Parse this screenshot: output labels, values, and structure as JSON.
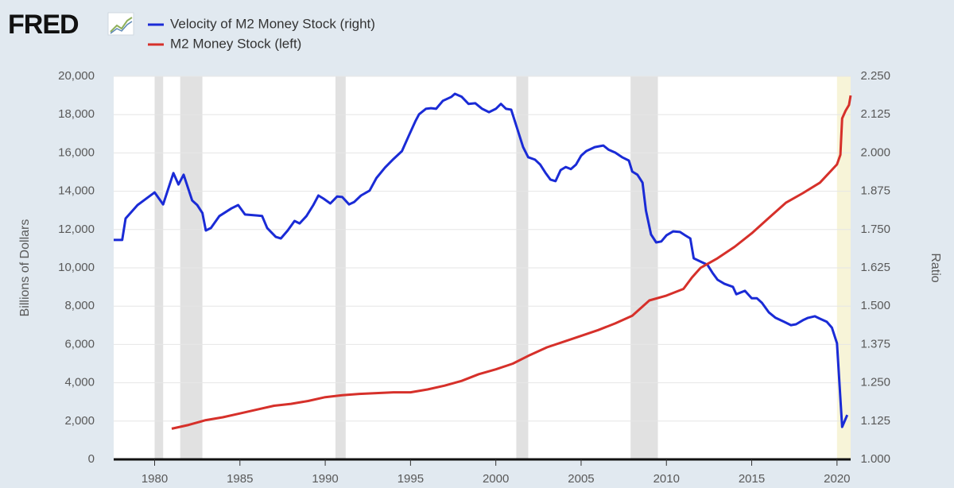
{
  "chart_data": {
    "type": "line",
    "logo": "FRED",
    "y_label": "Billions of Dollars",
    "y2_label": "Ratio",
    "xlim": [
      1977.6,
      2020.8
    ],
    "xticks": [
      1980,
      1985,
      1990,
      1995,
      2000,
      2005,
      2010,
      2015,
      2020
    ],
    "ylim": [
      0,
      20000
    ],
    "yticks": [
      {
        "value": 0,
        "label": "0"
      },
      {
        "value": 2000,
        "label": "2,000"
      },
      {
        "value": 4000,
        "label": "4,000"
      },
      {
        "value": 6000,
        "label": "6,000"
      },
      {
        "value": 8000,
        "label": "8,000"
      },
      {
        "value": 10000,
        "label": "10,000"
      },
      {
        "value": 12000,
        "label": "12,000"
      },
      {
        "value": 14000,
        "label": "14,000"
      },
      {
        "value": 16000,
        "label": "16,000"
      },
      {
        "value": 18000,
        "label": "18,000"
      },
      {
        "value": 20000,
        "label": "20,000"
      }
    ],
    "y2lim": [
      1.0,
      2.25
    ],
    "y2ticks": [
      {
        "value": 1.0,
        "label": "1.000"
      },
      {
        "value": 1.125,
        "label": "1.125"
      },
      {
        "value": 1.25,
        "label": "1.250"
      },
      {
        "value": 1.375,
        "label": "1.375"
      },
      {
        "value": 1.5,
        "label": "1.500"
      },
      {
        "value": 1.625,
        "label": "1.625"
      },
      {
        "value": 1.75,
        "label": "1.750"
      },
      {
        "value": 1.875,
        "label": "1.875"
      },
      {
        "value": 2.0,
        "label": "2.000"
      },
      {
        "value": 2.125,
        "label": "2.125"
      },
      {
        "value": 2.25,
        "label": "2.250"
      }
    ],
    "grid": true,
    "recessions": [
      {
        "start": 1980.0,
        "end": 1980.5,
        "color": "#e1e1e1"
      },
      {
        "start": 1981.5,
        "end": 1982.8,
        "color": "#e1e1e1"
      },
      {
        "start": 1990.6,
        "end": 1991.2,
        "color": "#e1e1e1"
      },
      {
        "start": 2001.2,
        "end": 2001.9,
        "color": "#e1e1e1"
      },
      {
        "start": 2007.9,
        "end": 2009.5,
        "color": "#e1e1e1"
      },
      {
        "start": 2020.0,
        "end": 2020.8,
        "color": "#f7f4d8"
      }
    ],
    "series": [
      {
        "name": "Velocity of M2 Money Stock (right)",
        "color": "#1a2bd6",
        "axis": "y2",
        "x": [
          1977.6,
          1978.1,
          1978.3,
          1979.0,
          1980.0,
          1980.5,
          1981.1,
          1981.4,
          1981.7,
          1982.2,
          1982.5,
          1982.8,
          1983.0,
          1983.3,
          1983.8,
          1984.5,
          1984.9,
          1985.3,
          1986.0,
          1986.3,
          1986.6,
          1987.1,
          1987.4,
          1987.8,
          1988.2,
          1988.5,
          1988.9,
          1989.3,
          1989.6,
          1989.9,
          1990.3,
          1990.7,
          1991.0,
          1991.4,
          1991.7,
          1992.1,
          1992.6,
          1993.0,
          1993.5,
          1994.0,
          1994.5,
          1994.9,
          1995.3,
          1995.5,
          1995.9,
          1996.2,
          1996.5,
          1996.9,
          1997.4,
          1997.6,
          1998.0,
          1998.4,
          1998.8,
          1999.2,
          1999.6,
          2000.0,
          2000.3,
          2000.6,
          2000.9,
          2001.2,
          2001.6,
          2001.9,
          2002.3,
          2002.6,
          2002.9,
          2003.2,
          2003.5,
          2003.8,
          2004.1,
          2004.4,
          2004.7,
          2005.0,
          2005.3,
          2005.8,
          2006.1,
          2006.3,
          2006.6,
          2007.0,
          2007.4,
          2007.8,
          2008.0,
          2008.3,
          2008.6,
          2008.8,
          2009.1,
          2009.4,
          2009.7,
          2010.0,
          2010.4,
          2010.8,
          2011.1,
          2011.4,
          2011.6,
          2012.1,
          2012.4,
          2012.7,
          2013.0,
          2013.4,
          2013.9,
          2014.1,
          2014.6,
          2015.0,
          2015.3,
          2015.6,
          2016.0,
          2016.4,
          2016.9,
          2017.3,
          2017.6,
          2018.0,
          2018.3,
          2018.7,
          2019.0,
          2019.4,
          2019.7,
          2020.0,
          2020.3,
          2020.6
        ],
        "values": [
          1.716,
          1.716,
          1.786,
          1.83,
          1.871,
          1.832,
          1.934,
          1.897,
          1.929,
          1.845,
          1.83,
          1.804,
          1.747,
          1.755,
          1.794,
          1.819,
          1.83,
          1.799,
          1.796,
          1.794,
          1.755,
          1.726,
          1.721,
          1.747,
          1.778,
          1.77,
          1.794,
          1.83,
          1.861,
          1.851,
          1.835,
          1.858,
          1.856,
          1.832,
          1.84,
          1.861,
          1.877,
          1.918,
          1.952,
          1.98,
          2.006,
          2.056,
          2.105,
          2.126,
          2.144,
          2.146,
          2.144,
          2.17,
          2.183,
          2.193,
          2.183,
          2.16,
          2.162,
          2.144,
          2.133,
          2.144,
          2.16,
          2.144,
          2.141,
          2.089,
          2.019,
          1.986,
          1.978,
          1.962,
          1.936,
          1.913,
          1.908,
          1.944,
          1.954,
          1.947,
          1.962,
          1.991,
          2.006,
          2.019,
          2.022,
          2.024,
          2.011,
          2.001,
          1.986,
          1.975,
          1.939,
          1.929,
          1.903,
          1.812,
          1.734,
          1.708,
          1.711,
          1.731,
          1.744,
          1.742,
          1.731,
          1.721,
          1.656,
          1.643,
          1.635,
          1.609,
          1.586,
          1.573,
          1.563,
          1.539,
          1.55,
          1.526,
          1.526,
          1.511,
          1.48,
          1.462,
          1.449,
          1.438,
          1.441,
          1.454,
          1.462,
          1.467,
          1.459,
          1.449,
          1.43,
          1.379,
          1.106,
          1.145
        ]
      },
      {
        "name": "M2 Money Stock (left)",
        "color": "#d6302a",
        "x": [
          1981.0,
          1982.0,
          1983.0,
          1984.0,
          1985.0,
          1986.0,
          1987.0,
          1988.0,
          1989.0,
          1990.0,
          1991.0,
          1992.0,
          1993.0,
          1994.0,
          1995.0,
          1996.0,
          1997.0,
          1998.0,
          1999.0,
          2000.0,
          2001.0,
          2002.0,
          2003.0,
          2004.0,
          2005.0,
          2006.0,
          2007.0,
          2008.0,
          2009.0,
          2010.0,
          2011.0,
          2011.5,
          2012.0,
          2013.0,
          2014.0,
          2015.0,
          2016.0,
          2017.0,
          2018.0,
          2019.0,
          2020.0,
          2020.2,
          2020.3,
          2020.5,
          2020.7,
          2020.8
        ],
        "values": [
          1600,
          1800,
          2050,
          2200,
          2400,
          2600,
          2800,
          2900,
          3050,
          3250,
          3350,
          3420,
          3460,
          3500,
          3500,
          3650,
          3850,
          4100,
          4450,
          4700,
          5000,
          5450,
          5850,
          6150,
          6450,
          6750,
          7100,
          7500,
          8300,
          8550,
          8900,
          9500,
          10000,
          10500,
          11100,
          11800,
          12600,
          13400,
          13900,
          14450,
          15400,
          15900,
          17800,
          18200,
          18500,
          19000
        ]
      }
    ]
  }
}
